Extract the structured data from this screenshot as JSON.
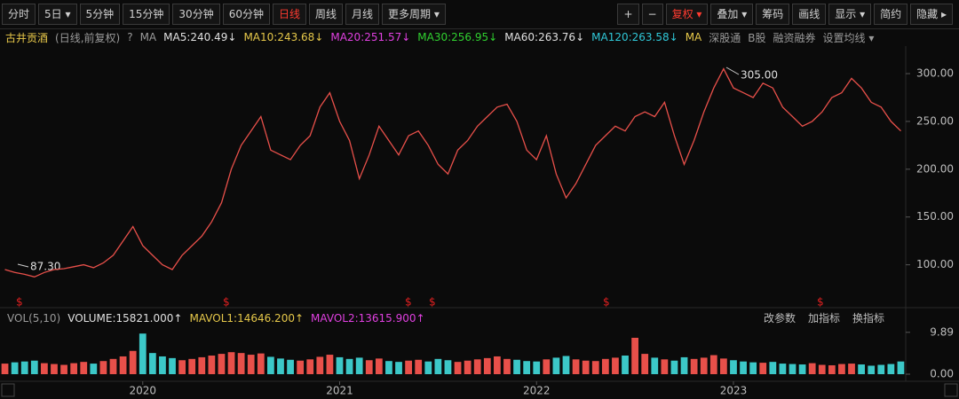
{
  "toolbar": {
    "periods": [
      {
        "label": "分时"
      },
      {
        "label": "5日 ▾"
      },
      {
        "label": "5分钟"
      },
      {
        "label": "15分钟"
      },
      {
        "label": "30分钟"
      },
      {
        "label": "60分钟"
      },
      {
        "label": "日线",
        "active": true
      },
      {
        "label": "周线"
      },
      {
        "label": "月线"
      },
      {
        "label": "更多周期 ▾"
      }
    ],
    "tools": [
      {
        "label": "+"
      },
      {
        "label": "−"
      },
      {
        "label": "复权 ▾",
        "active": true
      },
      {
        "label": "叠加 ▾"
      },
      {
        "label": "筹码"
      },
      {
        "label": "画线"
      },
      {
        "label": "显示 ▾"
      },
      {
        "label": "简约"
      },
      {
        "label": "隐藏 ▸"
      }
    ]
  },
  "indicator_bar": {
    "stock": "古井贡酒",
    "mode": "(日线,前复权)",
    "help": "?",
    "ma": "MA",
    "ma_values": [
      "MA5:240.49↓",
      "MA10:243.68↓",
      "MA20:251.57↓",
      "MA30:256.95↓",
      "MA60:263.76↓",
      "MA120:263.58↓",
      "MA"
    ],
    "extras": [
      "深股通",
      "B股",
      "融资融券",
      "设置均线 ▾"
    ]
  },
  "volume_bar": {
    "label": "VOL(5,10)",
    "items": [
      "VOLUME:15821.000↑",
      "MAVOL1:14646.200↑",
      "MAVOL2:13615.900↑"
    ],
    "actions": [
      "改参数",
      "加指标",
      "换指标"
    ]
  },
  "annotations": [
    "305.00",
    "87.30"
  ],
  "chart_data": [
    {
      "type": "line",
      "color": "#e8504a",
      "values": [
        95,
        92,
        90,
        87.3,
        92,
        95,
        96,
        98,
        100,
        97,
        102,
        110,
        125,
        140,
        120,
        110,
        100,
        95,
        110,
        120,
        130,
        145,
        165,
        200,
        225,
        240,
        255,
        220,
        215,
        210,
        225,
        235,
        265,
        280,
        250,
        230,
        190,
        215,
        245,
        230,
        215,
        235,
        240,
        225,
        205,
        195,
        220,
        230,
        245,
        255,
        265,
        268,
        250,
        220,
        210,
        235,
        195,
        170,
        185,
        205,
        225,
        235,
        245,
        240,
        255,
        260,
        255,
        270,
        235,
        205,
        230,
        260,
        285,
        305,
        285,
        280,
        275,
        290,
        285,
        265,
        255,
        245,
        250,
        260,
        275,
        280,
        295,
        285,
        270,
        265,
        250,
        240
      ],
      "ylim": [
        57,
        326
      ],
      "yticks": [
        {
          "value": 100,
          "label": "100.00"
        },
        {
          "value": 150,
          "label": "150.00"
        },
        {
          "value": 200,
          "label": "200.00"
        },
        {
          "value": 250,
          "label": "250.00"
        },
        {
          "value": 300,
          "label": "300.00"
        }
      ]
    },
    {
      "type": "bar",
      "up_color": "#e8504a",
      "down_color": "#3cc8c8",
      "categories": [
        null,
        null,
        null,
        null,
        null,
        null,
        null,
        null,
        null,
        null,
        null,
        null,
        null,
        null,
        "2020",
        null,
        null,
        null,
        null,
        null,
        null,
        null,
        null,
        null,
        null,
        null,
        null,
        null,
        null,
        null,
        null,
        null,
        null,
        null,
        "2021",
        null,
        null,
        null,
        null,
        null,
        null,
        null,
        null,
        null,
        null,
        null,
        null,
        null,
        null,
        null,
        null,
        null,
        null,
        null,
        "2022",
        null,
        null,
        null,
        null,
        null,
        null,
        null,
        null,
        null,
        null,
        null,
        null,
        null,
        null,
        null,
        null,
        null,
        null,
        null,
        "2023",
        null,
        null,
        null,
        null,
        null,
        null,
        null,
        null,
        null,
        null,
        null,
        null,
        null,
        null,
        null,
        null,
        null
      ],
      "values": [
        2.5,
        2.8,
        3.0,
        3.2,
        2.6,
        2.4,
        2.2,
        2.6,
        2.9,
        2.5,
        3.1,
        3.6,
        4.2,
        5.5,
        9.6,
        5.0,
        4.2,
        3.8,
        3.3,
        3.6,
        4.0,
        4.4,
        4.8,
        5.2,
        5.0,
        4.6,
        4.9,
        4.1,
        3.7,
        3.4,
        3.2,
        3.5,
        4.1,
        4.6,
        4.0,
        3.6,
        3.9,
        3.3,
        3.7,
        3.1,
        2.9,
        3.2,
        3.4,
        3.0,
        3.6,
        3.3,
        2.9,
        3.2,
        3.5,
        3.8,
        4.2,
        3.6,
        3.4,
        3.1,
        3.0,
        3.5,
        3.9,
        4.3,
        3.5,
        3.2,
        3.1,
        3.6,
        3.9,
        4.4,
        8.6,
        4.8,
        3.9,
        3.5,
        3.2,
        4.0,
        3.6,
        3.9,
        4.5,
        3.7,
        3.3,
        3.0,
        2.8,
        2.7,
        2.9,
        2.5,
        2.4,
        2.3,
        2.6,
        2.2,
        2.1,
        2.4,
        2.5,
        2.3,
        2.0,
        2.2,
        2.4,
        3.0
      ],
      "ylim": [
        0,
        10.9
      ],
      "yticks": [
        {
          "value": 0,
          "label": "0.00"
        },
        {
          "value": 9.89,
          "label": "9.89"
        }
      ]
    }
  ]
}
